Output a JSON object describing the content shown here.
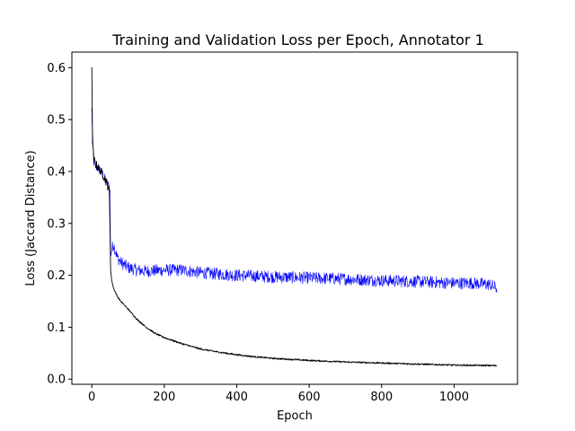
{
  "chart_data": {
    "type": "line",
    "title": "Training and Validation Loss per Epoch, Annotator 1",
    "xlabel": "Epoch",
    "ylabel": "Loss (Jaccard Distance)",
    "xlim": [
      -55,
      1175
    ],
    "ylim": [
      -0.01,
      0.63
    ],
    "xticks": [
      0,
      200,
      400,
      600,
      800,
      1000
    ],
    "xtick_labels": [
      "0",
      "200",
      "400",
      "600",
      "800",
      "1000"
    ],
    "yticks": [
      0.0,
      0.1,
      0.2,
      0.3,
      0.4,
      0.5,
      0.6
    ],
    "ytick_labels": [
      "0.0",
      "0.1",
      "0.2",
      "0.3",
      "0.4",
      "0.5",
      "0.6"
    ],
    "grid": false,
    "legend": "none",
    "series": [
      {
        "color": "#000000",
        "x": [
          0,
          2,
          5,
          10,
          20,
          30,
          40,
          48,
          50,
          52,
          55,
          60,
          70,
          80,
          100,
          125,
          150,
          175,
          200,
          250,
          300,
          350,
          400,
          450,
          500,
          600,
          700,
          800,
          900,
          1000,
          1118
        ],
        "y": [
          0.595,
          0.46,
          0.425,
          0.415,
          0.405,
          0.395,
          0.38,
          0.365,
          0.3,
          0.21,
          0.19,
          0.175,
          0.16,
          0.15,
          0.135,
          0.115,
          0.1,
          0.088,
          0.08,
          0.068,
          0.058,
          0.052,
          0.047,
          0.043,
          0.04,
          0.036,
          0.033,
          0.031,
          0.029,
          0.027,
          0.026
        ]
      },
      {
        "color": "#0000ff",
        "noise": 0.012,
        "x": [
          0,
          2,
          5,
          10,
          20,
          30,
          40,
          48,
          50,
          52,
          55,
          60,
          70,
          80,
          100,
          125,
          150,
          200,
          250,
          300,
          400,
          500,
          600,
          700,
          800,
          900,
          1000,
          1050,
          1100,
          1118
        ],
        "y": [
          0.52,
          0.47,
          0.42,
          0.41,
          0.405,
          0.395,
          0.38,
          0.37,
          0.36,
          0.24,
          0.25,
          0.26,
          0.235,
          0.225,
          0.215,
          0.21,
          0.208,
          0.21,
          0.21,
          0.205,
          0.2,
          0.197,
          0.195,
          0.193,
          0.19,
          0.188,
          0.185,
          0.185,
          0.182,
          0.175
        ]
      }
    ]
  }
}
